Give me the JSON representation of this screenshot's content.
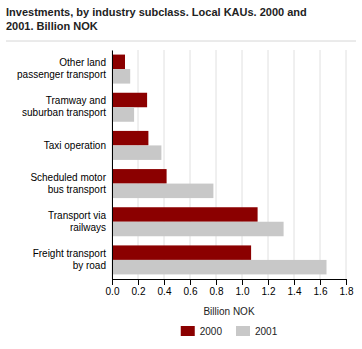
{
  "chart_data": {
    "type": "bar",
    "orientation": "horizontal",
    "title": "Investments, by industry subclass. Local KAUs. 2000 and\n2001. Billion NOK",
    "categories": [
      "Freight transport\nby road",
      "Transport via\nrailways",
      "Scheduled motor\nbus transport",
      "Taxi operation",
      "Tramway and\nsuburban transport",
      "Other land\npassenger transport"
    ],
    "series": [
      {
        "name": "2000",
        "color": "#8B0000",
        "values": [
          1.07,
          1.12,
          0.42,
          0.28,
          0.27,
          0.1
        ]
      },
      {
        "name": "2001",
        "color": "#C8C8C8",
        "values": [
          1.65,
          1.32,
          0.78,
          0.38,
          0.17,
          0.14
        ]
      }
    ],
    "xlabel": "Billion NOK",
    "xlim": [
      0,
      1.8
    ],
    "xticks": [
      {
        "value": 0.0,
        "label": "0.0"
      },
      0.2,
      0.4,
      0.6,
      0.8,
      {
        "value": 1.0,
        "label": "1.0"
      },
      1.2,
      1.4,
      1.6,
      1.8
    ],
    "grid": true,
    "legend": "bottom"
  }
}
